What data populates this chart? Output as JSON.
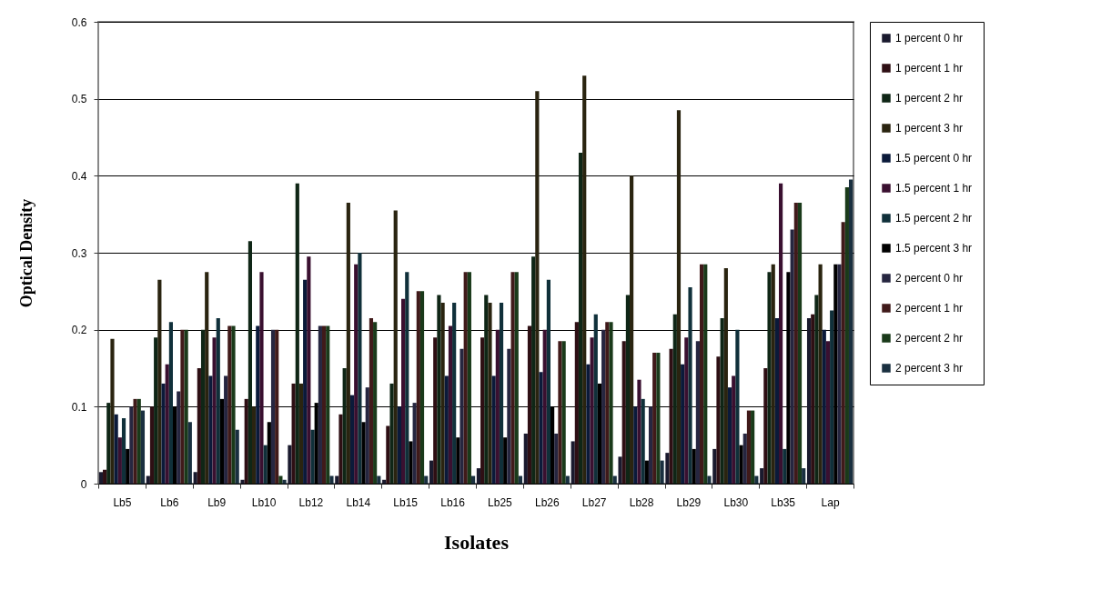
{
  "chart_data": {
    "type": "bar",
    "xlabel": "Isolates",
    "ylabel": "Optical Density",
    "categories": [
      "Lb5",
      "Lb6",
      "Lb9",
      "Lb10",
      "Lb12",
      "Lb14",
      "Lb15",
      "Lb16",
      "Lb25",
      "Lb26",
      "Lb27",
      "Lb28",
      "Lb29",
      "Lb30",
      "Lb35",
      "Lap"
    ],
    "series": [
      {
        "name": "1 percent 0 hr",
        "color": "#1a1a2e",
        "values": [
          0.015,
          0.01,
          0.015,
          0.005,
          0.05,
          0.01,
          0.005,
          0.03,
          0.02,
          0.065,
          0.055,
          0.035,
          0.04,
          0.045,
          0.02,
          0.215
        ]
      },
      {
        "name": "1 percent 1 hr",
        "color": "#2e0f14",
        "values": [
          0.018,
          0.1,
          0.15,
          0.11,
          0.13,
          0.09,
          0.075,
          0.19,
          0.19,
          0.205,
          0.21,
          0.185,
          0.175,
          0.165,
          0.15,
          0.22
        ]
      },
      {
        "name": "1 percent 2 hr",
        "color": "#0f2616",
        "values": [
          0.105,
          0.19,
          0.2,
          0.315,
          0.39,
          0.15,
          0.13,
          0.245,
          0.245,
          0.295,
          0.43,
          0.245,
          0.22,
          0.215,
          0.275,
          0.245
        ]
      },
      {
        "name": "1 percent 3 hr",
        "color": "#2a2410",
        "values": [
          0.188,
          0.265,
          0.275,
          0.1,
          0.13,
          0.365,
          0.355,
          0.235,
          0.235,
          0.51,
          0.53,
          0.4,
          0.485,
          0.28,
          0.285,
          0.285
        ]
      },
      {
        "name": "1.5 percent 0 hr",
        "color": "#0b1a3a",
        "values": [
          0.09,
          0.13,
          0.14,
          0.205,
          0.265,
          0.115,
          0.1,
          0.14,
          0.14,
          0.145,
          0.155,
          0.1,
          0.155,
          0.125,
          0.215,
          0.2
        ]
      },
      {
        "name": "1.5 percent 1 hr",
        "color": "#3a1030",
        "values": [
          0.06,
          0.155,
          0.19,
          0.275,
          0.295,
          0.285,
          0.24,
          0.205,
          0.2,
          0.2,
          0.19,
          0.135,
          0.19,
          0.14,
          0.39,
          0.185
        ]
      },
      {
        "name": "1.5 percent 2 hr",
        "color": "#10303a",
        "values": [
          0.085,
          0.21,
          0.215,
          0.05,
          0.07,
          0.3,
          0.275,
          0.235,
          0.235,
          0.265,
          0.22,
          0.11,
          0.255,
          0.2,
          0.045,
          0.225
        ]
      },
      {
        "name": "1.5 percent 3 hr",
        "color": "#000000",
        "values": [
          0.045,
          0.1,
          0.11,
          0.08,
          0.105,
          0.08,
          0.055,
          0.06,
          0.06,
          0.1,
          0.13,
          0.03,
          0.045,
          0.05,
          0.275,
          0.285
        ]
      },
      {
        "name": "2 percent 0 hr",
        "color": "#262640",
        "values": [
          0.1,
          0.12,
          0.14,
          0.2,
          0.205,
          0.125,
          0.105,
          0.175,
          0.175,
          0.065,
          0.2,
          0.1,
          0.185,
          0.065,
          0.33,
          0.285
        ]
      },
      {
        "name": "2 percent 1 hr",
        "color": "#401a1a",
        "values": [
          0.11,
          0.2,
          0.205,
          0.2,
          0.205,
          0.215,
          0.25,
          0.275,
          0.275,
          0.185,
          0.21,
          0.17,
          0.285,
          0.095,
          0.365,
          0.34
        ]
      },
      {
        "name": "2 percent 2 hr",
        "color": "#1a3a1a",
        "values": [
          0.11,
          0.2,
          0.205,
          0.01,
          0.205,
          0.21,
          0.25,
          0.275,
          0.275,
          0.185,
          0.21,
          0.17,
          0.285,
          0.095,
          0.365,
          0.385
        ]
      },
      {
        "name": "2 percent 3 hr",
        "color": "#1a3040",
        "values": [
          0.095,
          0.08,
          0.07,
          0.005,
          0.01,
          0.01,
          0.01,
          0.01,
          0.01,
          0.01,
          0.01,
          0.03,
          0.01,
          0.01,
          0.02,
          0.395
        ]
      }
    ],
    "ylim": [
      0,
      0.6
    ],
    "yticks": [
      0,
      0.1,
      0.2,
      0.3,
      0.4,
      0.5,
      0.6
    ],
    "grid": "y",
    "legend": "right"
  }
}
